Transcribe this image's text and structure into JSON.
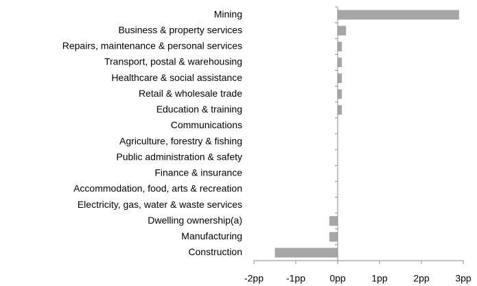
{
  "chart_data": {
    "type": "barh",
    "categories": [
      "Mining",
      "Business & property services",
      "Repairs, maintenance & personal services",
      "Transport, postal & warehousing",
      "Healthcare & social assistance",
      "Retail & wholesale trade",
      "Education & training",
      "Communications",
      "Agriculture, forestry & fishing",
      "Public administration & safety",
      "Finance & insurance",
      "Accommodation, food, arts & recreation",
      "Electricity, gas, water & waste services",
      "Dwelling ownership(a)",
      "Manufacturing",
      "Construction"
    ],
    "values": [
      2.9,
      0.2,
      0.1,
      0.1,
      0.1,
      0.1,
      0.1,
      0,
      0,
      0,
      0,
      0,
      0,
      -0.2,
      -0.2,
      -1.5
    ],
    "color": "#a6a6a6",
    "xlim": [
      -2,
      3
    ],
    "xticks": [
      {
        "value": -2,
        "label": "-2pp"
      },
      {
        "value": -1,
        "label": "-1pp"
      },
      {
        "value": 0,
        "label": "0pp"
      },
      {
        "value": 1,
        "label": "1pp"
      },
      {
        "value": 2,
        "label": "2pp"
      },
      {
        "value": 3,
        "label": "3pp"
      }
    ]
  }
}
